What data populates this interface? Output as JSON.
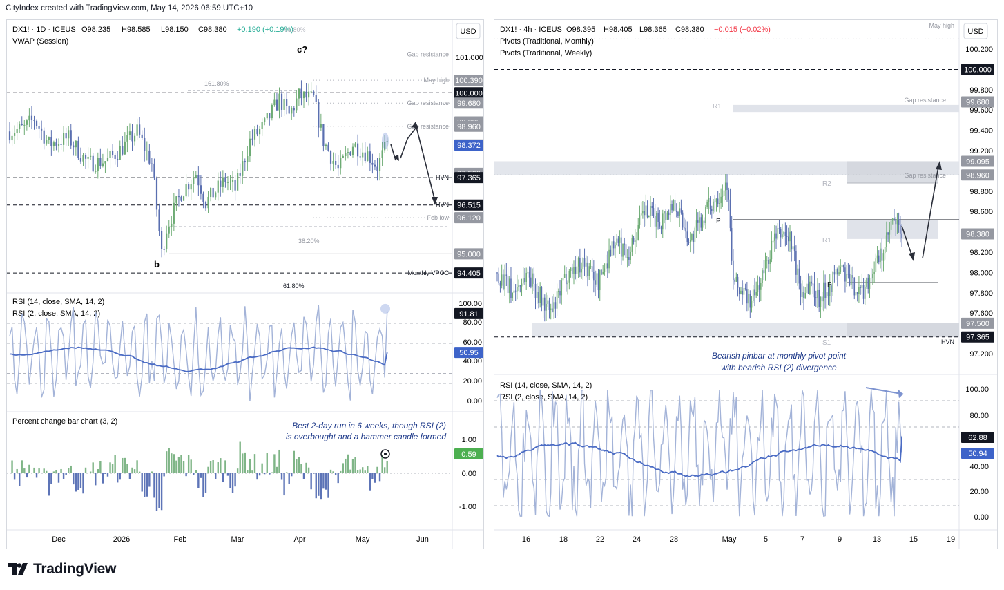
{
  "header": {
    "text": "CityIndex created with TradingView.com, May 14, 2026 06:59 UTC+10"
  },
  "footer": {
    "brand": "TradingView"
  },
  "colors": {
    "up": "#6dab74",
    "down": "#5a6fb0",
    "rsi_fast": "#a3b3d8",
    "rsi_slow": "#4a6bc4",
    "zone": "#e0e3ea",
    "bar_up": "#7fb587",
    "bar_down": "#5d74b7"
  },
  "left": {
    "legend_title": "DX1! · 1D · ICEUS",
    "legend_o": "O98.235",
    "legend_h": "H98.585",
    "legend_l": "L98.150",
    "legend_c": "C98.380",
    "legend_chg": "+0.190 (+0.19%)",
    "legend_fib": "61.80%",
    "vwap": "VWAP (Session)",
    "currency": "USD",
    "rsi_legend1": "RSI (14, close, SMA, 14, 2)",
    "rsi_legend2": "RSI (2, close, SMA, 14, 2)",
    "pct_legend": "Percent change bar chart (3, 2)",
    "note_line1": "Best 2-day run in 6 weeks, though RSI (2)",
    "note_line2": "is overbought and a hammer candle formed",
    "wave_c": "c?",
    "wave_b": "b",
    "fib_1618": "161.80%",
    "fib_382": "38.20%",
    "fib_618": "61.80%",
    "level_labels": [
      {
        "text": "Gap resistance",
        "price": 101.2
      },
      {
        "text": "May high",
        "price": 100.39
      },
      {
        "text": "Gap resistance",
        "price": 99.68
      },
      {
        "text": "Gap resistance",
        "price": 98.96
      },
      {
        "text": "HVN",
        "price": 97.365
      },
      {
        "text": "HVN",
        "price": 96.515
      },
      {
        "text": "Feb low",
        "price": 96.12
      },
      {
        "text": "Monthly VPOC",
        "price": 94.405
      }
    ],
    "price_axis": [
      "101.000"
    ],
    "price_tags": [
      {
        "text": "100.390",
        "price": 100.39,
        "style": "gray"
      },
      {
        "text": "100.000",
        "price": 100.0,
        "style": "black"
      },
      {
        "text": "99.680",
        "price": 99.68,
        "style": "gray"
      },
      {
        "text": "99.095",
        "price": 99.095,
        "style": "gray"
      },
      {
        "text": "98.960",
        "price": 98.96,
        "style": "gray"
      },
      {
        "text": "98.380",
        "price": 98.38,
        "style": "gray"
      },
      {
        "text": "98.372",
        "price": 98.372,
        "style": "blue"
      },
      {
        "text": "97.500",
        "price": 97.5,
        "style": "gray"
      },
      {
        "text": "97.365",
        "price": 97.365,
        "style": "black"
      },
      {
        "text": "96.515",
        "price": 96.515,
        "style": "black"
      },
      {
        "text": "96.120",
        "price": 96.12,
        "style": "gray"
      },
      {
        "text": "95.000",
        "price": 95.0,
        "style": "gray"
      },
      {
        "text": "94.405",
        "price": 94.405,
        "style": "black"
      }
    ],
    "rsi_axis": [
      "100.00",
      "80.00",
      "60.00",
      "40.00",
      "20.00",
      "0.00"
    ],
    "rsi_tags": [
      {
        "text": "91.81",
        "value": 91.81
      },
      {
        "text": "50.95",
        "value": 50.95
      }
    ],
    "pct_axis": [
      "1.00",
      "0.00",
      "-1.00"
    ],
    "pct_tag": {
      "text": "0.59",
      "value": 0.59
    },
    "x_labels": [
      "Dec",
      "2026",
      "Feb",
      "Mar",
      "Apr",
      "May",
      "Jun"
    ]
  },
  "right": {
    "legend_title": "DX1! · 4h · ICEUS",
    "legend_o": "O98.395",
    "legend_h": "H98.405",
    "legend_l": "L98.365",
    "legend_c": "C98.380",
    "legend_chg": "−0.015 (−0.02%)",
    "pivot_monthly": "Pivots (Traditional, Monthly)",
    "pivot_weekly": "Pivots (Traditional, Weekly)",
    "currency": "USD",
    "may_high": "May high",
    "gap_res1": "Gap resistance",
    "gap_res2": "Gap resistance",
    "hvn": "HVN",
    "pivot_r1_top": "R1",
    "pivot_r2": "R2",
    "pivot_p_top": "P",
    "pivot_r1": "R1",
    "pivot_p": "P",
    "pivot_s1": "S1",
    "note_line1": "Bearish pinbar at monthly pivot point",
    "note_line2": "with bearish RSI (2) divergence",
    "rsi_legend1": "RSI (14, close, SMA, 14, 2)",
    "rsi_legend2": "RSI (2, close, SMA, 14, 2)",
    "price_axis": [
      "100.200",
      "99.800",
      "99.600",
      "99.400",
      "99.200",
      "98.800",
      "98.600",
      "98.200",
      "98.000",
      "97.800",
      "97.600",
      "97.200"
    ],
    "price_tags": [
      {
        "text": "100.000",
        "price": 100.0,
        "style": "black"
      },
      {
        "text": "99.680",
        "price": 99.68,
        "style": "gray"
      },
      {
        "text": "99.095",
        "price": 99.095,
        "style": "gray"
      },
      {
        "text": "98.960",
        "price": 98.96,
        "style": "gray"
      },
      {
        "text": "98.380",
        "price": 98.38,
        "style": "gray"
      },
      {
        "text": "97.500",
        "price": 97.5,
        "style": "gray"
      },
      {
        "text": "97.365",
        "price": 97.365,
        "style": "black"
      }
    ],
    "rsi_axis": [
      "100.00",
      "80.00",
      "40.00",
      "20.00",
      "0.00"
    ],
    "rsi_tags": [
      {
        "text": "62.88",
        "value": 62.88
      },
      {
        "text": "50.94",
        "value": 50.94
      }
    ],
    "x_labels": [
      "16",
      "18",
      "22",
      "24",
      "28",
      "May",
      "5",
      "7",
      "9",
      "13",
      "15",
      "19"
    ]
  },
  "chart_data": [
    {
      "type": "candlestick",
      "title": "DX1! · 1D · ICEUS",
      "ylim": [
        94.0,
        101.4
      ],
      "x_ticks": [
        "Dec",
        "2026",
        "Feb",
        "Mar",
        "Apr",
        "May",
        "Jun"
      ],
      "anchors": [
        [
          0,
          98.8
        ],
        [
          6,
          98.9
        ],
        [
          10,
          99.2
        ],
        [
          16,
          98.4
        ],
        [
          24,
          98.6
        ],
        [
          32,
          97.8
        ],
        [
          40,
          97.9
        ],
        [
          46,
          98.3
        ],
        [
          52,
          98.8
        ],
        [
          58,
          97.8
        ],
        [
          62,
          95.0
        ],
        [
          64,
          95.8
        ],
        [
          70,
          96.9
        ],
        [
          76,
          97.5
        ],
        [
          80,
          96.6
        ],
        [
          88,
          97.3
        ],
        [
          92,
          97.0
        ],
        [
          98,
          98.5
        ],
        [
          104,
          99.0
        ],
        [
          110,
          99.8
        ],
        [
          114,
          99.3
        ],
        [
          118,
          99.9
        ],
        [
          124,
          99.8
        ],
        [
          128,
          98.5
        ],
        [
          134,
          97.6
        ],
        [
          140,
          98.4
        ],
        [
          146,
          98.1
        ],
        [
          150,
          97.7
        ],
        [
          154,
          98.38
        ]
      ],
      "indicators": {
        "rsi14_last": 50.95,
        "rsi2_last": 91.81,
        "pct_change_last": 0.59
      }
    },
    {
      "type": "candlestick",
      "title": "DX1! · 4h · ICEUS",
      "ylim": [
        97.05,
        100.35
      ],
      "x_ticks": [
        "16",
        "18",
        "22",
        "24",
        "28",
        "May",
        "5",
        "7",
        "9",
        "13",
        "15",
        "19"
      ],
      "anchors": [
        [
          0,
          98.0
        ],
        [
          10,
          97.8
        ],
        [
          20,
          98.0
        ],
        [
          30,
          97.7
        ],
        [
          36,
          97.6
        ],
        [
          46,
          98.0
        ],
        [
          56,
          98.1
        ],
        [
          66,
          97.9
        ],
        [
          76,
          98.3
        ],
        [
          86,
          98.2
        ],
        [
          96,
          98.6
        ],
        [
          106,
          98.5
        ],
        [
          116,
          98.7
        ],
        [
          126,
          98.3
        ],
        [
          136,
          98.6
        ],
        [
          146,
          98.8
        ],
        [
          150,
          98.9
        ],
        [
          154,
          97.9
        ],
        [
          160,
          97.8
        ],
        [
          166,
          97.7
        ],
        [
          174,
          98.0
        ],
        [
          180,
          98.3
        ],
        [
          186,
          98.4
        ],
        [
          192,
          98.3
        ],
        [
          198,
          97.8
        ],
        [
          204,
          97.9
        ],
        [
          210,
          97.75
        ],
        [
          218,
          97.9
        ],
        [
          224,
          98.05
        ],
        [
          230,
          97.9
        ],
        [
          238,
          97.8
        ],
        [
          246,
          98.05
        ],
        [
          252,
          98.2
        ],
        [
          258,
          98.5
        ],
        [
          264,
          98.38
        ]
      ],
      "indicators": {
        "rsi14_last": 62.88,
        "rsi2_last": 50.94
      }
    }
  ]
}
